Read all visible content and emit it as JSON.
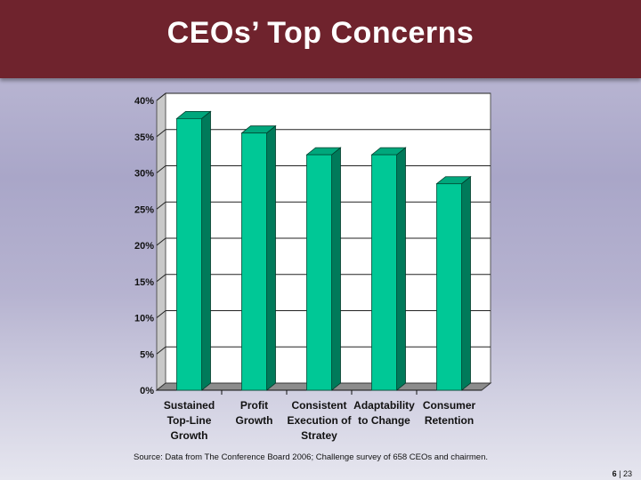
{
  "header": {
    "title": "CEOs’ Top Concerns"
  },
  "chart_data": {
    "type": "bar",
    "categories": [
      [
        "Sustained",
        "Top-Line",
        "Growth"
      ],
      [
        "Profit",
        "Growth"
      ],
      [
        "Consistent",
        "Execution of",
        "Stratey"
      ],
      [
        "Adaptability",
        "to Change"
      ],
      [
        "Consumer",
        "Retention"
      ]
    ],
    "values": [
      37.5,
      35.5,
      32.5,
      32.5,
      28.5
    ],
    "ylim": [
      0,
      40
    ],
    "yticks": [
      0,
      5,
      10,
      15,
      20,
      25,
      30,
      35,
      40
    ],
    "ytick_labels": [
      "0%",
      "5%",
      "10%",
      "15%",
      "20%",
      "25%",
      "30%",
      "35%",
      "40%"
    ],
    "grid": true,
    "bar_color": "#00c896",
    "title": "",
    "xlabel": "",
    "ylabel": ""
  },
  "footer": {
    "source": "Source:  Data from The Conference Board 2006; Challenge survey of 658 CEOs and chairmen.",
    "page_current": "6",
    "page_sep": " | ",
    "page_total": "23"
  }
}
